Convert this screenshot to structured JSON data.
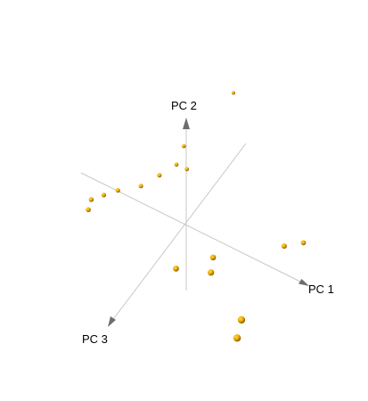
{
  "chart_data": {
    "type": "scatter3d",
    "title": "",
    "axes": [
      "PC 1",
      "PC 2",
      "PC 3"
    ],
    "point_color": "#e8a800",
    "point_highlight": "#ffd84a",
    "point_shadow": "#7a5200",
    "axis_color": "#c8c8c8",
    "arrow_color": "#6e6e6e",
    "points": [
      {
        "pc1": 0.4,
        "pc2": 2.4,
        "pc3": -1.0
      },
      {
        "pc1": -0.45,
        "pc2": 1.05,
        "pc3": -0.6
      },
      {
        "pc1": -0.55,
        "pc2": 0.65,
        "pc3": -0.5
      },
      {
        "pc1": -0.35,
        "pc2": 0.6,
        "pc3": -0.55
      },
      {
        "pc1": -0.8,
        "pc2": 0.45,
        "pc3": -0.3
      },
      {
        "pc1": -1.15,
        "pc2": 0.1,
        "pc3": -0.2
      },
      {
        "pc1": -1.6,
        "pc2": -0.15,
        "pc3": -0.1
      },
      {
        "pc1": -1.85,
        "pc2": -0.3,
        "pc3": 0.0
      },
      {
        "pc1": -2.0,
        "pc2": -0.3,
        "pc3": 0.2
      },
      {
        "pc1": -2.0,
        "pc2": -0.45,
        "pc3": 0.3
      },
      {
        "pc1": 0.1,
        "pc2": -0.55,
        "pc3": 0.5
      },
      {
        "pc1": 0.95,
        "pc2": -0.1,
        "pc3": 0.6
      },
      {
        "pc1": 0.8,
        "pc2": -0.1,
        "pc3": 0.3
      },
      {
        "pc1": 2.0,
        "pc2": 0.25,
        "pc3": -0.3
      },
      {
        "pc1": 2.3,
        "pc2": 0.3,
        "pc3": -0.5
      },
      {
        "pc1": 1.9,
        "pc2": -0.35,
        "pc3": 1.0
      },
      {
        "pc1": 2.0,
        "pc2": -0.45,
        "pc3": 1.3
      }
    ]
  }
}
